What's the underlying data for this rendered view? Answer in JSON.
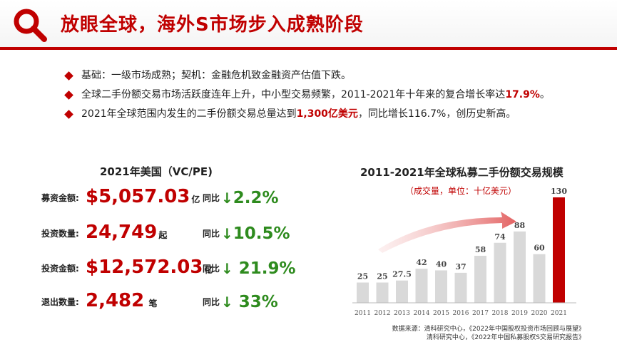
{
  "header": {
    "title": "放眼全球，海外S市场步入成熟阶段",
    "icon": "search-icon",
    "accent_color": "#c00000"
  },
  "bullets": [
    {
      "parts": [
        "基础：一级市场成熟；契机：金融危机致金融资产估值下跌。"
      ]
    },
    {
      "parts": [
        "全球二手份额交易市场活跃度连年上升，中小型交易频繁，2011-2021年十年来的复合增长率达",
        "17.9%",
        "。"
      ]
    },
    {
      "parts": [
        "2021年全球范围内发生的二手份额交易总量达到",
        "1,300亿美元",
        "，同比增长116.7%，创历史新高。"
      ]
    }
  ],
  "stats": {
    "title": "2021年美国（VC/PE)",
    "rows": [
      {
        "label": "募资金额:",
        "value": "$5,057.03",
        "unit": "亿",
        "yoy_label": "同比",
        "change": "2.2%"
      },
      {
        "label": "投资数量:",
        "value": "24,749",
        "unit": "起",
        "yoy_label": "同比",
        "change": "10.5%"
      },
      {
        "label": "投资金额:",
        "value": "$12,572.03",
        "unit": "亿",
        "yoy_label": "同比",
        "change": " 21.9%"
      },
      {
        "label": "退出数量:",
        "value": "2,482",
        "unit": " 笔",
        "yoy_label": "同比",
        "change": " 33%"
      }
    ],
    "value_color": "#c00000",
    "change_color": "#2e8b1e"
  },
  "chart_data": {
    "type": "bar",
    "title": "2011-2021年全球私募二手份额交易规模",
    "subtitle": "（成交量，单位：十亿美元）",
    "categories": [
      "2011",
      "2012",
      "2013",
      "2014",
      "2015",
      "2016",
      "2017",
      "2018",
      "2019",
      "2020",
      "2021"
    ],
    "values": [
      25,
      25,
      27.5,
      42,
      40,
      37,
      58,
      74,
      88,
      60,
      130
    ],
    "data_labels": [
      "25",
      "25",
      "27.5",
      "42",
      "40",
      "37",
      "58",
      "74",
      "88",
      "60",
      "130"
    ],
    "ylim": [
      0,
      130
    ],
    "bar_color": "#d9d9d9",
    "highlight_color": "#c00000",
    "highlight_index": 10,
    "grid": false
  },
  "source": {
    "lines": [
      "数据来源：清科研究中心，《2022年中国股权投资市场回顾与展望》",
      "清科研究中心，《2022年中国私募股权S交易研究报告》"
    ]
  }
}
